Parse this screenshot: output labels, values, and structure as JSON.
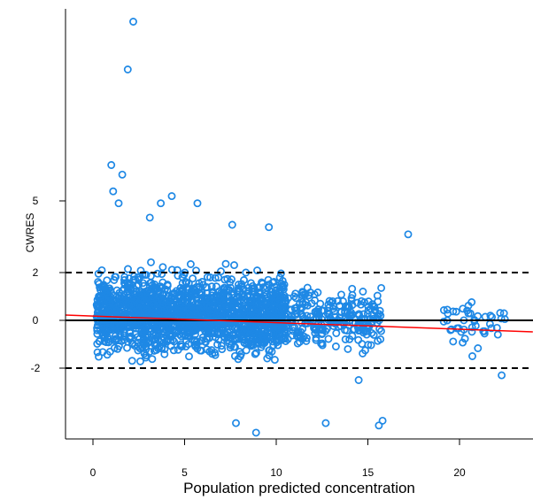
{
  "chart_data": {
    "type": "scatter",
    "title": "",
    "xlabel": "Population predicted concentration",
    "ylabel": "CWRES",
    "xlim": [
      -1.5,
      24
    ],
    "ylim": [
      -5,
      13
    ],
    "x_ticks": [
      0,
      5,
      10,
      15,
      20
    ],
    "x_tick_labels": [
      "0",
      "5",
      "10",
      "15",
      "20"
    ],
    "y_ticks": [
      -2,
      0,
      2,
      5
    ],
    "y_tick_labels": [
      "-2",
      "0",
      "2",
      "5"
    ],
    "grid": false,
    "point_color": "#1e88e5",
    "reference_lines": [
      {
        "y": 0,
        "style": "solid",
        "color": "#000000"
      },
      {
        "y": 2,
        "style": "dashed",
        "color": "#000000"
      },
      {
        "y": -2,
        "style": "dashed",
        "color": "#000000"
      }
    ],
    "trend_line": {
      "color": "#ff0000",
      "x": [
        -1.5,
        24
      ],
      "y": [
        0.22,
        -0.48
      ]
    },
    "notable_points": [
      {
        "x": 2.2,
        "y": 12.5
      },
      {
        "x": 1.9,
        "y": 10.5
      },
      {
        "x": 1.0,
        "y": 6.5
      },
      {
        "x": 1.6,
        "y": 6.1
      },
      {
        "x": 1.1,
        "y": 5.4
      },
      {
        "x": 1.4,
        "y": 4.9
      },
      {
        "x": 4.3,
        "y": 5.2
      },
      {
        "x": 5.7,
        "y": 4.9
      },
      {
        "x": 3.7,
        "y": 4.9
      },
      {
        "x": 9.6,
        "y": 3.9
      },
      {
        "x": 7.6,
        "y": 4.0
      },
      {
        "x": 3.1,
        "y": 4.3
      },
      {
        "x": 17.2,
        "y": 3.6
      },
      {
        "x": 12.7,
        "y": -4.3
      },
      {
        "x": 15.8,
        "y": -4.2
      },
      {
        "x": 15.6,
        "y": -4.4
      },
      {
        "x": 8.9,
        "y": -4.7
      },
      {
        "x": 7.8,
        "y": -4.3
      },
      {
        "x": 22.3,
        "y": -2.3
      },
      {
        "x": 20.7,
        "y": -1.5
      },
      {
        "x": 14.5,
        "y": -2.5
      }
    ],
    "clusters": [
      {
        "x_range": [
          0.2,
          10.5
        ],
        "y_center": 0.25,
        "y_spread": 1.05,
        "count": 1700
      },
      {
        "x_range": [
          10.5,
          12.5
        ],
        "y_center": 0.1,
        "y_spread": 0.9,
        "count": 110
      },
      {
        "x_range": [
          12.5,
          15.8
        ],
        "y_center": 0.05,
        "y_spread": 0.8,
        "count": 150
      },
      {
        "x_range": [
          19.0,
          22.5
        ],
        "y_center": -0.05,
        "y_spread": 0.7,
        "count": 45
      }
    ]
  }
}
